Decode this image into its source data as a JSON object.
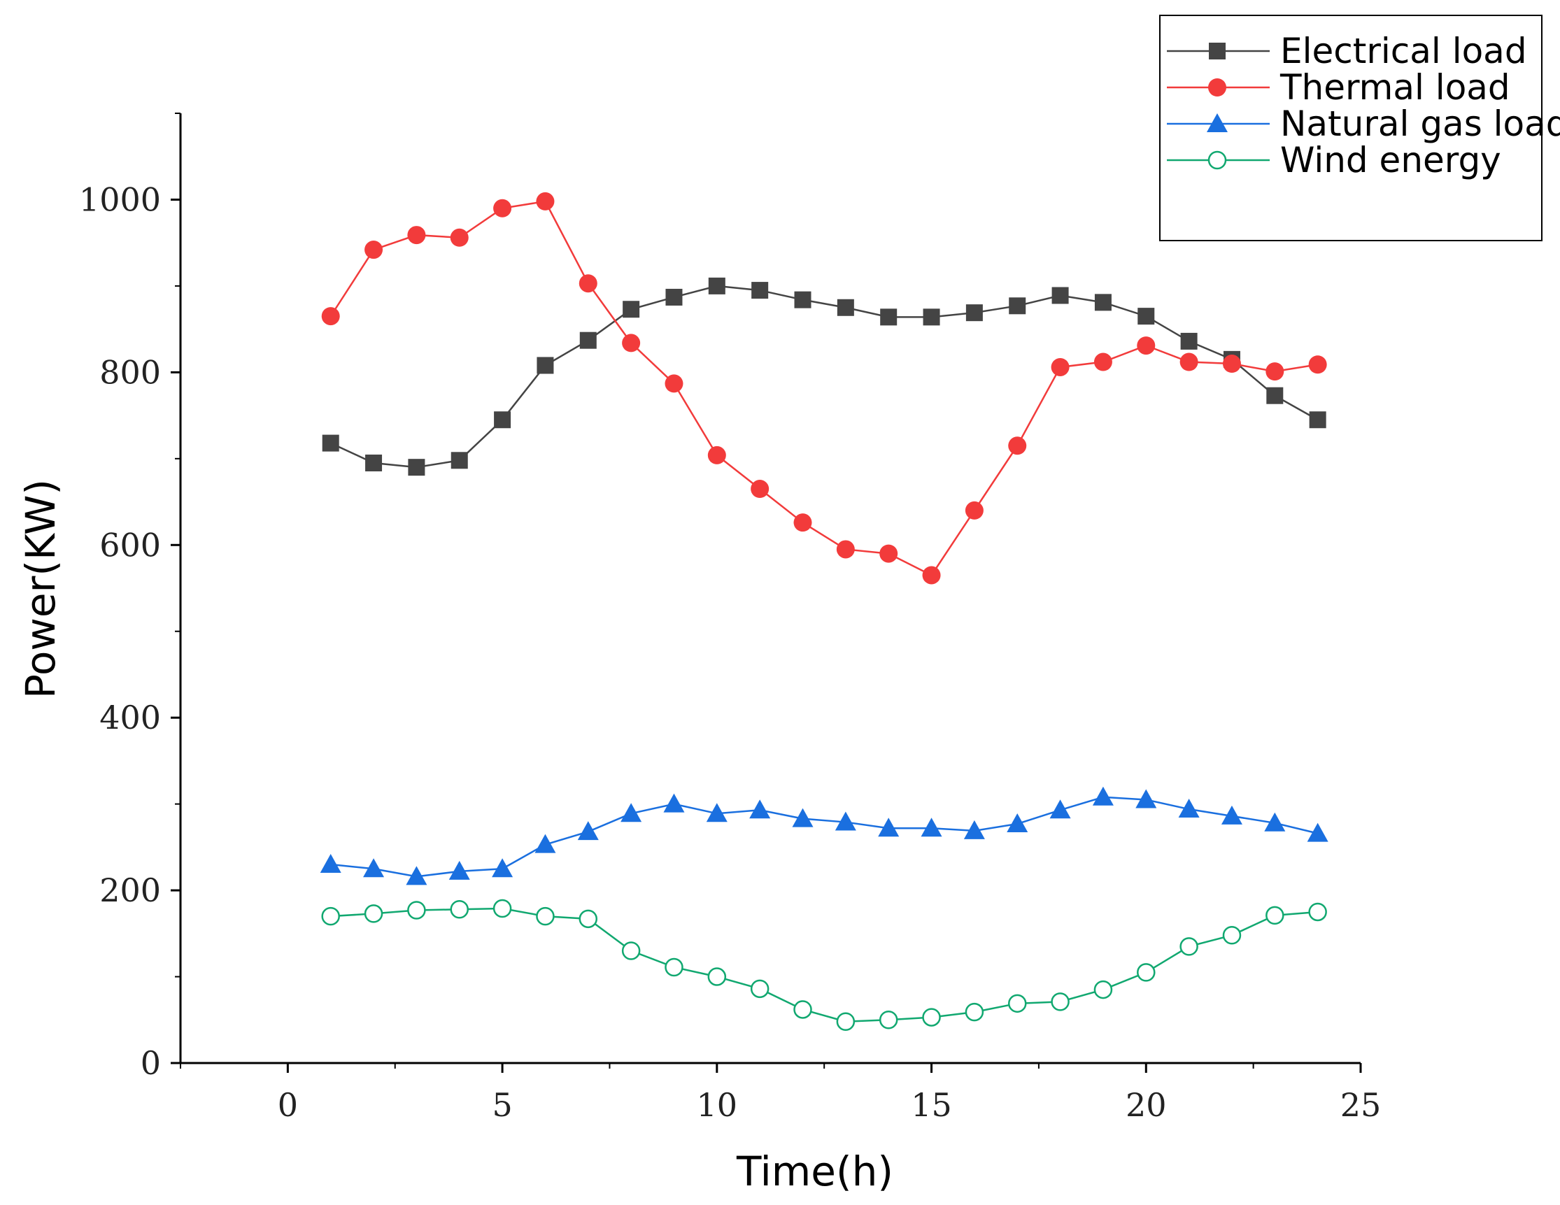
{
  "chart_data": {
    "type": "line",
    "xlabel": "Time(h)",
    "ylabel": "Power(KW)",
    "xlim": [
      -2.5,
      25
    ],
    "ylim": [
      0,
      1100
    ],
    "x_ticks": [
      "0",
      "5",
      "10",
      "15",
      "20",
      "25"
    ],
    "y_ticks": [
      "0",
      "200",
      "400",
      "600",
      "800",
      "1000"
    ],
    "grid": false,
    "legend_position": "top-right",
    "x": [
      1,
      2,
      3,
      4,
      5,
      6,
      7,
      8,
      9,
      10,
      11,
      12,
      13,
      14,
      15,
      16,
      17,
      18,
      19,
      20,
      21,
      22,
      23,
      24
    ],
    "series": [
      {
        "name": "Electrical load",
        "color": "#444444",
        "marker": "square",
        "values": [
          718,
          695,
          690,
          698,
          745,
          808,
          837,
          873,
          887,
          900,
          895,
          884,
          875,
          864,
          864,
          869,
          877,
          889,
          881,
          865,
          836,
          815,
          773,
          745
        ]
      },
      {
        "name": "Thermal load",
        "color": "#f23b3b",
        "marker": "circle",
        "values": [
          865,
          942,
          959,
          956,
          990,
          998,
          903,
          834,
          787,
          704,
          665,
          626,
          595,
          590,
          565,
          640,
          715,
          806,
          812,
          831,
          812,
          810,
          801,
          809
        ]
      },
      {
        "name": "Natural gas load",
        "color": "#1a6fdf",
        "marker": "triangle",
        "values": [
          230,
          225,
          216,
          222,
          225,
          253,
          268,
          289,
          300,
          289,
          293,
          283,
          279,
          272,
          272,
          269,
          277,
          293,
          308,
          305,
          294,
          286,
          278,
          266
        ]
      },
      {
        "name": "Wind energy",
        "color": "#11a870",
        "marker": "open-circle",
        "values": [
          170,
          173,
          177,
          178,
          179,
          170,
          167,
          130,
          111,
          100,
          86,
          62,
          48,
          50,
          53,
          59,
          69,
          71,
          85,
          105,
          135,
          148,
          171,
          175
        ]
      }
    ]
  }
}
